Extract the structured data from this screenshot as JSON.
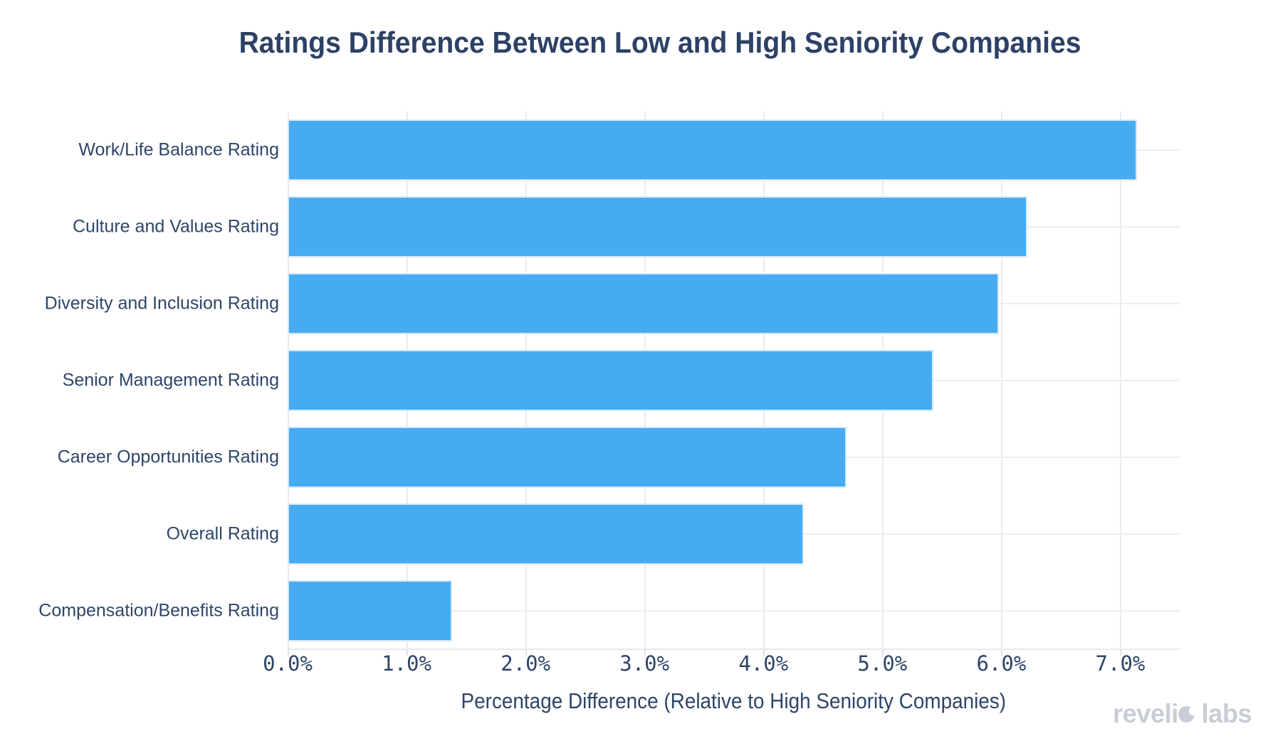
{
  "brand": {
    "name": "revelio labs"
  },
  "chart_data": {
    "type": "bar",
    "orientation": "horizontal",
    "title": "Ratings Difference Between Low and High Seniority Companies",
    "xlabel": "Percentage Difference (Relative to High Seniority Companies)",
    "ylabel": "",
    "categories": [
      "Work/Life Balance Rating",
      "Culture and Values Rating",
      "Diversity and Inclusion Rating",
      "Senior Management Rating",
      "Career Opportunities Rating",
      "Overall Rating",
      "Compensation/Benefits Rating"
    ],
    "values": [
      7.14,
      6.22,
      5.98,
      5.43,
      4.7,
      4.34,
      1.38
    ],
    "value_unit": "%",
    "xlim": [
      0,
      7.5
    ],
    "xticks": [
      0,
      1,
      2,
      3,
      4,
      5,
      6,
      7
    ],
    "xtick_labels": [
      "0.0%",
      "1.0%",
      "2.0%",
      "3.0%",
      "4.0%",
      "5.0%",
      "6.0%",
      "7.0%"
    ],
    "grid": true,
    "legend": false,
    "bar_color": "#47abf1",
    "bar_border_color": "#d2e7fa",
    "gridline_color": "#e9ebf2",
    "background_color": "#ffffff",
    "text_color": "#2e4568",
    "title_color": "#2d4166"
  }
}
